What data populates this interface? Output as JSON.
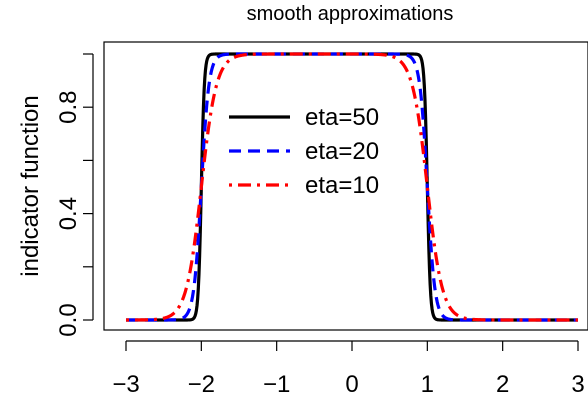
{
  "chart_data": {
    "type": "line",
    "title": "smooth approximations",
    "xlabel": "",
    "ylabel": "indicator function",
    "xlim": [
      -3,
      3
    ],
    "ylim": [
      0,
      1
    ],
    "x_ticks": [
      -3,
      -2,
      -1,
      0,
      1,
      2,
      3
    ],
    "x_tick_labels": [
      "−3",
      "−2",
      "−1",
      "0",
      "1",
      "2",
      "3"
    ],
    "y_ticks": [
      0.0,
      0.2,
      0.4,
      0.6,
      0.8,
      1.0
    ],
    "y_tick_labels": [
      "0.0",
      "",
      "0.4",
      "",
      "0.8",
      ""
    ],
    "grid": false,
    "legend_position": "center-left",
    "series": [
      {
        "name": "eta=50",
        "eta": 50,
        "color": "#000000",
        "dash": "solid"
      },
      {
        "name": "eta=20",
        "eta": 20,
        "color": "#0000ff",
        "dash": "dashed"
      },
      {
        "name": "eta=10",
        "eta": 10,
        "color": "#ff0000",
        "dash": "dotdash"
      }
    ],
    "indicator_interval": [
      -2,
      1
    ]
  }
}
